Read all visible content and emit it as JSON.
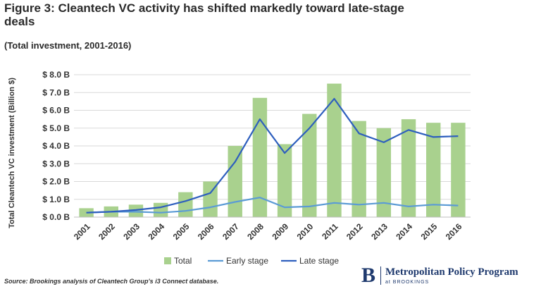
{
  "header": {
    "title": "Figure 3: Cleantech VC activity has shifted markedly toward late-stage deals",
    "subtitle": "(Total investment, 2001-2016)"
  },
  "footer": {
    "source": "Source: Brookings analysis of Cleantech Group's i3 Connect database.",
    "logo_mark": "B",
    "logo_name": "Metropolitan Policy Program",
    "logo_sub": "at BROOKINGS"
  },
  "colors": {
    "bar": "#a9d18e",
    "early_line": "#5b9bd5",
    "late_line": "#2e5fbe",
    "grid": "#d9d9d9"
  },
  "chart_data": {
    "type": "bar",
    "title": "Figure 3: Cleantech VC activity has shifted markedly toward late-stage deals",
    "subtitle": "(Total investment, 2001-2016)",
    "ylabel": "Total Cleantech VC investment (Billion $)",
    "xlabel": "",
    "ylim": [
      0,
      8
    ],
    "ytick_values": [
      0,
      1,
      2,
      3,
      4,
      5,
      6,
      7,
      8
    ],
    "ytick_labels": [
      "$ 0.0 B",
      "$ 1.0 B",
      "$ 2.0 B",
      "$ 3.0 B",
      "$ 4.0 B",
      "$ 5.0 B",
      "$ 6.0 B",
      "$ 7.0 B",
      "$ 8.0 B"
    ],
    "grid": true,
    "legend_position": "bottom",
    "categories": [
      "2001",
      "2002",
      "2003",
      "2004",
      "2005",
      "2006",
      "2007",
      "2008",
      "2009",
      "2010",
      "2011",
      "2012",
      "2013",
      "2014",
      "2015",
      "2016"
    ],
    "series": [
      {
        "name": "Total",
        "type": "bar",
        "values": [
          0.5,
          0.6,
          0.7,
          0.8,
          1.4,
          2.0,
          4.0,
          6.7,
          4.1,
          5.8,
          7.5,
          5.4,
          5.0,
          5.5,
          5.3,
          5.3
        ]
      },
      {
        "name": "Early stage",
        "type": "line",
        "values": [
          0.25,
          0.3,
          0.3,
          0.25,
          0.35,
          0.55,
          0.85,
          1.1,
          0.55,
          0.6,
          0.8,
          0.7,
          0.8,
          0.6,
          0.7,
          0.65
        ]
      },
      {
        "name": "Late stage",
        "type": "line",
        "values": [
          0.25,
          0.3,
          0.4,
          0.55,
          0.9,
          1.35,
          3.1,
          5.5,
          3.6,
          5.0,
          6.65,
          4.7,
          4.2,
          4.9,
          4.5,
          4.55
        ]
      }
    ]
  }
}
